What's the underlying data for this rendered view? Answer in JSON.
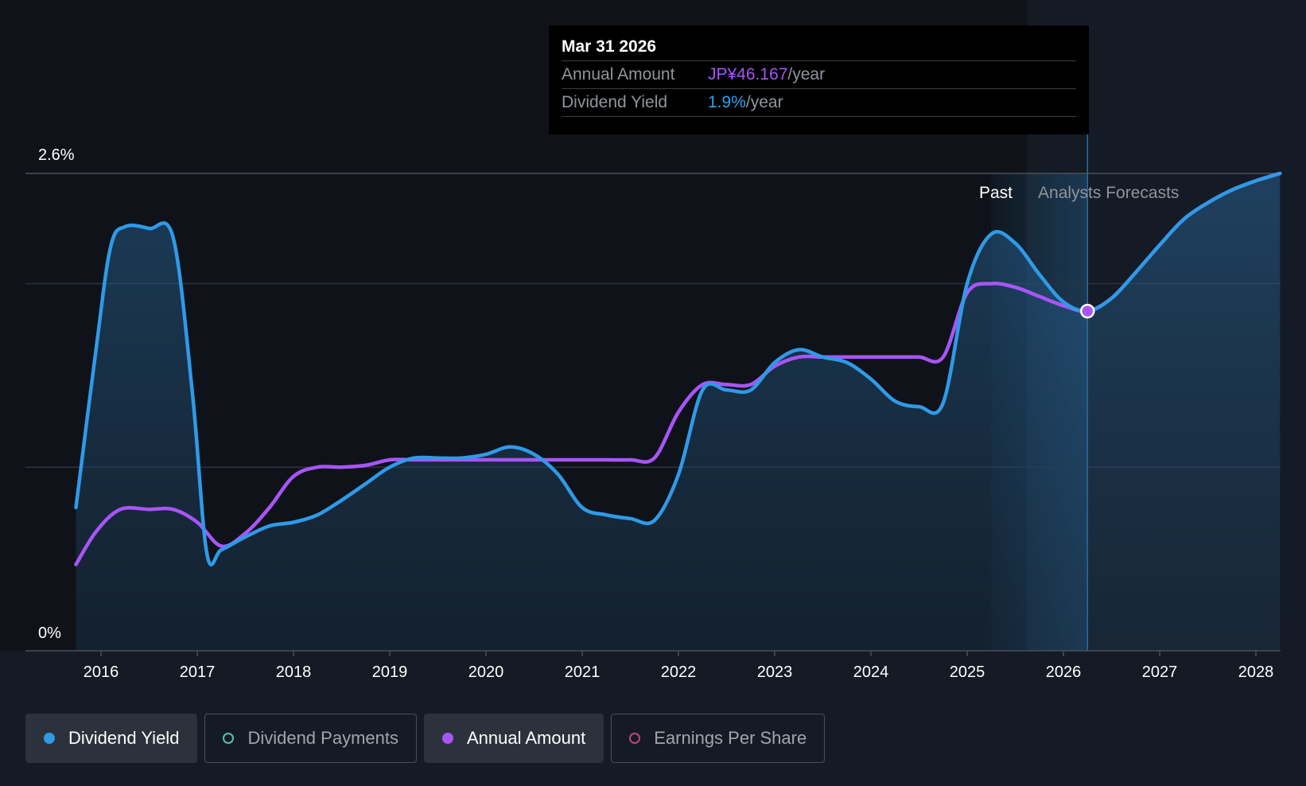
{
  "tooltip": {
    "date": "Mar 31 2026",
    "rows": [
      {
        "label": "Annual Amount",
        "value": "JP¥46.167",
        "unit": "/year"
      },
      {
        "label": "Dividend Yield",
        "value": "1.9%",
        "unit": "/year"
      }
    ]
  },
  "chart_data": {
    "type": "line",
    "y_ticks": [
      "2.6%",
      "0%"
    ],
    "ylim": [
      0,
      2.6
    ],
    "xlim": [
      2015.73,
      2028.25
    ],
    "x_ticks": [
      "2016",
      "2017",
      "2018",
      "2019",
      "2020",
      "2021",
      "2022",
      "2023",
      "2024",
      "2025",
      "2026",
      "2027",
      "2028"
    ],
    "regions": {
      "past_label": "Past",
      "forecast_label": "Analysts Forecasts",
      "split_x": 2025.62
    },
    "highlight_x": 2026.25,
    "series": [
      {
        "name": "Dividend Yield",
        "color": "#2f9ae8",
        "x": [
          2015.74,
          2015.95,
          2016.1,
          2016.25,
          2016.5,
          2016.75,
          2016.95,
          2017.1,
          2017.25,
          2017.5,
          2017.75,
          2018.0,
          2018.25,
          2018.5,
          2018.75,
          2019.0,
          2019.25,
          2019.5,
          2019.75,
          2020.0,
          2020.25,
          2020.5,
          2020.75,
          2021.0,
          2021.25,
          2021.5,
          2021.75,
          2022.0,
          2022.25,
          2022.5,
          2022.75,
          2023.0,
          2023.25,
          2023.5,
          2023.75,
          2024.0,
          2024.25,
          2024.5,
          2024.75,
          2025.0,
          2025.25,
          2025.5,
          2025.75,
          2026.0,
          2026.25,
          2026.5,
          2026.75,
          2027.0,
          2027.25,
          2027.5,
          2027.75,
          2028.0,
          2028.25
        ],
        "values": [
          0.78,
          1.65,
          2.2,
          2.31,
          2.3,
          2.25,
          1.4,
          0.53,
          0.55,
          0.62,
          0.68,
          0.7,
          0.74,
          0.82,
          0.91,
          1.0,
          1.05,
          1.05,
          1.05,
          1.07,
          1.11,
          1.07,
          0.96,
          0.78,
          0.74,
          0.72,
          0.71,
          0.96,
          1.42,
          1.42,
          1.42,
          1.57,
          1.64,
          1.6,
          1.57,
          1.48,
          1.36,
          1.33,
          1.35,
          2.0,
          2.27,
          2.22,
          2.05,
          1.9,
          1.85,
          1.92,
          2.06,
          2.21,
          2.35,
          2.44,
          2.51,
          2.56,
          2.6
        ]
      },
      {
        "name": "Annual Amount",
        "color": "#a855f7",
        "x": [
          2015.74,
          2015.95,
          2016.2,
          2016.5,
          2016.75,
          2017.0,
          2017.25,
          2017.5,
          2017.75,
          2018.0,
          2018.25,
          2018.5,
          2018.75,
          2019.0,
          2019.25,
          2019.5,
          2019.75,
          2020.0,
          2020.25,
          2020.5,
          2020.75,
          2021.0,
          2021.25,
          2021.5,
          2021.75,
          2022.0,
          2022.25,
          2022.5,
          2022.75,
          2023.0,
          2023.25,
          2023.5,
          2023.75,
          2024.0,
          2024.25,
          2024.5,
          2024.75,
          2025.0,
          2025.25,
          2025.5,
          2025.75,
          2026.0,
          2026.25,
          2026.5,
          2026.75,
          2027.0,
          2027.25,
          2027.5,
          2027.75,
          2028.0,
          2028.25
        ],
        "values": [
          0.47,
          0.65,
          0.77,
          0.77,
          0.77,
          0.7,
          0.57,
          0.64,
          0.78,
          0.95,
          1.0,
          1.0,
          1.01,
          1.04,
          1.04,
          1.04,
          1.04,
          1.04,
          1.04,
          1.04,
          1.04,
          1.04,
          1.04,
          1.04,
          1.05,
          1.3,
          1.45,
          1.45,
          1.45,
          1.55,
          1.6,
          1.6,
          1.6,
          1.6,
          1.6,
          1.6,
          1.6,
          1.95,
          2.0,
          1.98,
          1.93,
          1.88,
          1.85,
          1.92,
          2.06,
          2.21,
          2.35,
          2.44,
          2.51,
          2.56,
          2.6
        ]
      }
    ]
  },
  "legend": [
    {
      "label": "Dividend Yield",
      "color": "#2f9ae8",
      "filled": true,
      "active": true
    },
    {
      "label": "Dividend Payments",
      "color": "#4fc3b6",
      "filled": false,
      "active": false
    },
    {
      "label": "Annual Amount",
      "color": "#a855f7",
      "filled": true,
      "active": true
    },
    {
      "label": "Earnings Per Share",
      "color": "#c2447a",
      "filled": false,
      "active": false
    }
  ]
}
